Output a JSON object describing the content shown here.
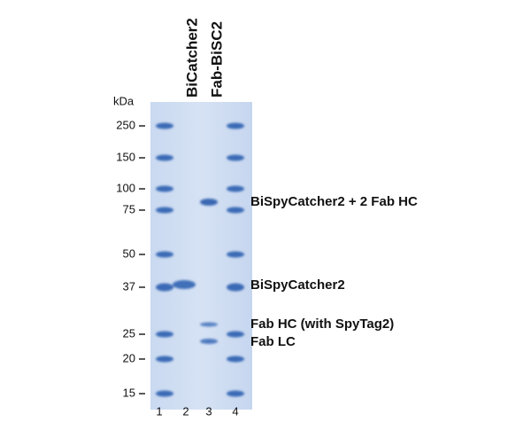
{
  "unit_label": "kDa",
  "lane_headers": [
    "BiCatcher2",
    "Fab-BiSC2"
  ],
  "markers": [
    "250",
    "150",
    "100",
    "75",
    "50",
    "37",
    "25",
    "20",
    "15"
  ],
  "lane_numbers": [
    "1",
    "2",
    "3",
    "4"
  ],
  "annotations": [
    "BiSpyCatcher2 + 2 Fab HC",
    "BiSpyCatcher2",
    "Fab HC (with SpyTag2)",
    "Fab LC"
  ]
}
